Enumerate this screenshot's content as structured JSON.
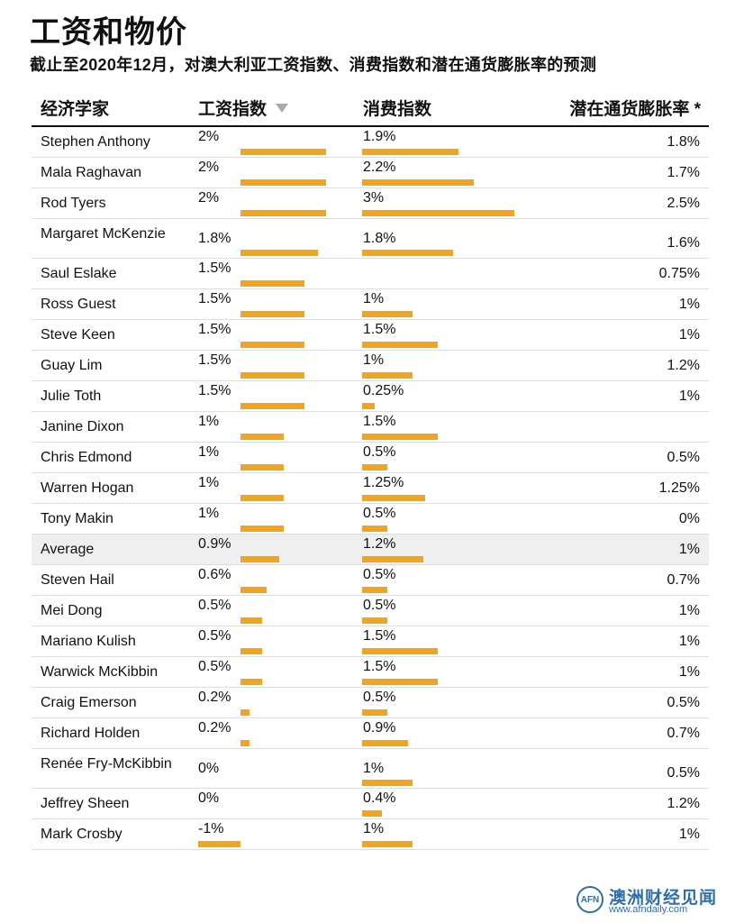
{
  "title": "工资和物价",
  "subtitle": "截止至2020年12月，对澳大利亚工资指数、消费指数和潜在通货膨胀率的预测",
  "headers": {
    "economist": "经济学家",
    "wage": "工资指数",
    "consumer": "消费指数",
    "inflation": "潜在通货膨胀率 *"
  },
  "sort_icon": "sort-down-triangle-icon",
  "colors": {
    "bar": "#f2a41f",
    "average_row": "#efefef",
    "logo": "#2f6fa8"
  },
  "logo": {
    "mark": "AFN",
    "name": "澳洲财经见闻",
    "url": "www.afndaily.com"
  },
  "chart_data": {
    "type": "table",
    "columns": [
      "经济学家",
      "工资指数",
      "消费指数",
      "潜在通货膨胀率 *"
    ],
    "rows": [
      {
        "name": "Stephen Anthony",
        "wage": 2,
        "wage_label": "2%",
        "consumer": 1.9,
        "consumer_label": "1.9%",
        "inflation_label": "1.8%"
      },
      {
        "name": "Mala Raghavan",
        "wage": 2,
        "wage_label": "2%",
        "consumer": 2.2,
        "consumer_label": "2.2%",
        "inflation_label": "1.7%"
      },
      {
        "name": "Rod Tyers",
        "wage": 2,
        "wage_label": "2%",
        "consumer": 3,
        "consumer_label": "3%",
        "inflation_label": "2.5%"
      },
      {
        "name": "Margaret McKenzie",
        "wage": 1.8,
        "wage_label": "1.8%",
        "consumer": 1.8,
        "consumer_label": "1.8%",
        "inflation_label": "1.6%"
      },
      {
        "name": "Saul Eslake",
        "wage": 1.5,
        "wage_label": "1.5%",
        "consumer": null,
        "consumer_label": "",
        "inflation_label": "0.75%"
      },
      {
        "name": "Ross Guest",
        "wage": 1.5,
        "wage_label": "1.5%",
        "consumer": 1,
        "consumer_label": "1%",
        "inflation_label": "1%"
      },
      {
        "name": "Steve Keen",
        "wage": 1.5,
        "wage_label": "1.5%",
        "consumer": 1.5,
        "consumer_label": "1.5%",
        "inflation_label": "1%"
      },
      {
        "name": "Guay Lim",
        "wage": 1.5,
        "wage_label": "1.5%",
        "consumer": 1,
        "consumer_label": "1%",
        "inflation_label": "1.2%"
      },
      {
        "name": "Julie Toth",
        "wage": 1.5,
        "wage_label": "1.5%",
        "consumer": 0.25,
        "consumer_label": "0.25%",
        "inflation_label": "1%"
      },
      {
        "name": "Janine Dixon",
        "wage": 1,
        "wage_label": "1%",
        "consumer": 1.5,
        "consumer_label": "1.5%",
        "inflation_label": ""
      },
      {
        "name": "Chris Edmond",
        "wage": 1,
        "wage_label": "1%",
        "consumer": 0.5,
        "consumer_label": "0.5%",
        "inflation_label": "0.5%"
      },
      {
        "name": "Warren Hogan",
        "wage": 1,
        "wage_label": "1%",
        "consumer": 1.25,
        "consumer_label": "1.25%",
        "inflation_label": "1.25%"
      },
      {
        "name": "Tony Makin",
        "wage": 1,
        "wage_label": "1%",
        "consumer": 0.5,
        "consumer_label": "0.5%",
        "inflation_label": "0%"
      },
      {
        "name": "Average",
        "wage": 0.9,
        "wage_label": "0.9%",
        "consumer": 1.2,
        "consumer_label": "1.2%",
        "inflation_label": "1%",
        "highlight": true
      },
      {
        "name": "Steven Hail",
        "wage": 0.6,
        "wage_label": "0.6%",
        "consumer": 0.5,
        "consumer_label": "0.5%",
        "inflation_label": "0.7%"
      },
      {
        "name": "Mei Dong",
        "wage": 0.5,
        "wage_label": "0.5%",
        "consumer": 0.5,
        "consumer_label": "0.5%",
        "inflation_label": "1%"
      },
      {
        "name": "Mariano Kulish",
        "wage": 0.5,
        "wage_label": "0.5%",
        "consumer": 1.5,
        "consumer_label": "1.5%",
        "inflation_label": "1%"
      },
      {
        "name": "Warwick McKibbin",
        "wage": 0.5,
        "wage_label": "0.5%",
        "consumer": 1.5,
        "consumer_label": "1.5%",
        "inflation_label": "1%"
      },
      {
        "name": "Craig Emerson",
        "wage": 0.2,
        "wage_label": "0.2%",
        "consumer": 0.5,
        "consumer_label": "0.5%",
        "inflation_label": "0.5%"
      },
      {
        "name": "Richard Holden",
        "wage": 0.2,
        "wage_label": "0.2%",
        "consumer": 0.9,
        "consumer_label": "0.9%",
        "inflation_label": "0.7%"
      },
      {
        "name": "Renée Fry-McKibbin",
        "wage": 0,
        "wage_label": "0%",
        "consumer": 1,
        "consumer_label": "1%",
        "inflation_label": "0.5%"
      },
      {
        "name": "Jeffrey Sheen",
        "wage": 0,
        "wage_label": "0%",
        "consumer": 0.4,
        "consumer_label": "0.4%",
        "inflation_label": "1.2%"
      },
      {
        "name": "Mark Crosby",
        "wage": -1,
        "wage_label": "-1%",
        "consumer": 1,
        "consumer_label": "1%",
        "inflation_label": "1%"
      }
    ]
  }
}
